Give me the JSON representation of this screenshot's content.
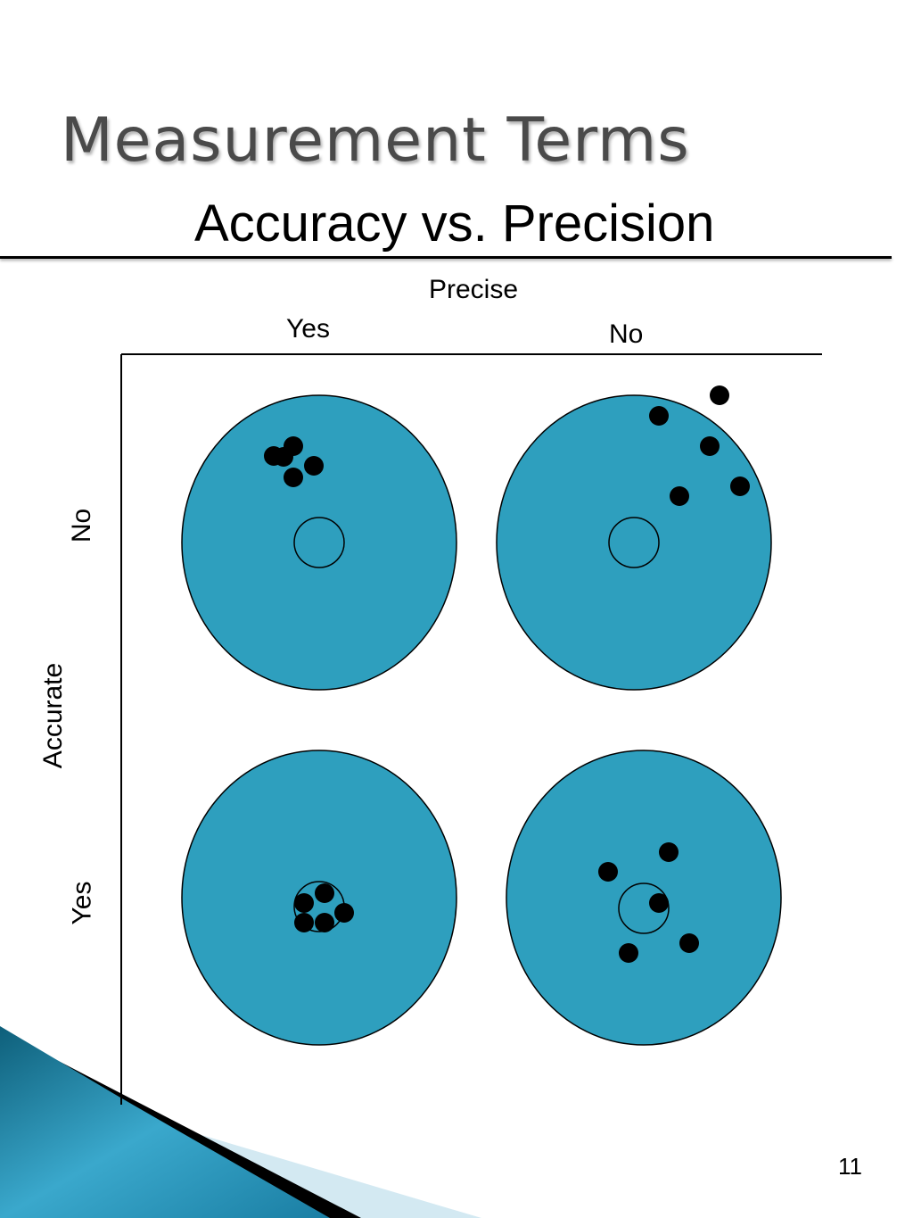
{
  "slide": {
    "title": "Measurement Terms",
    "subtitle": "Accuracy vs. Precision",
    "page_number": "11"
  },
  "diagram": {
    "top_axis_label": "Precise",
    "side_axis_label": "Accurate",
    "columns": [
      "Yes",
      "No"
    ],
    "rows": [
      "No",
      "Yes"
    ],
    "target_color": "#2e9fbe",
    "quadrants": [
      {
        "precise": "Yes",
        "accurate": "No",
        "description": "tight cluster away from center"
      },
      {
        "precise": "No",
        "accurate": "No",
        "description": "scattered away from center"
      },
      {
        "precise": "Yes",
        "accurate": "Yes",
        "description": "tight cluster on center"
      },
      {
        "precise": "No",
        "accurate": "Yes",
        "description": "scattered around center"
      }
    ]
  }
}
